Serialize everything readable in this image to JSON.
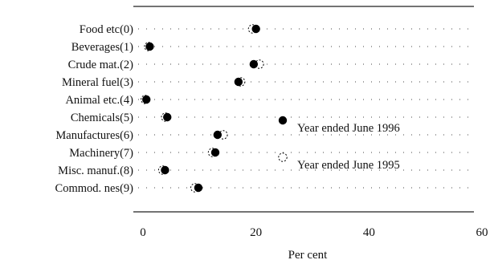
{
  "chart_data": {
    "type": "scatter",
    "style": "dot-plot",
    "categories": [
      "Food etc(0)",
      "Beverages(1)",
      "Crude mat.(2)",
      "Mineral fuel(3)",
      "Animal etc.(4)",
      "Chemicals(5)",
      "Manufactures(6)",
      "Machinery(7)",
      "Misc. manuf.(8)",
      "Commod. nes(9)"
    ],
    "series": [
      {
        "name": "Year ended June 1996",
        "marker": "filled-circle",
        "color": "#000000",
        "values": [
          20.0,
          1.2,
          19.6,
          16.9,
          0.6,
          4.3,
          13.2,
          12.8,
          3.9,
          9.8
        ]
      },
      {
        "name": "Year ended June 1995",
        "marker": "open-circle",
        "color": "#000000",
        "values": [
          19.4,
          1.0,
          20.6,
          17.3,
          0.4,
          4.0,
          14.2,
          12.3,
          3.5,
          9.2
        ]
      }
    ],
    "xlabel": "Per cent",
    "ylabel": "",
    "xlim": [
      0,
      60
    ],
    "xticks": [
      "0",
      "20",
      "40",
      "60"
    ],
    "grid": false,
    "legend_position": "center-right"
  }
}
